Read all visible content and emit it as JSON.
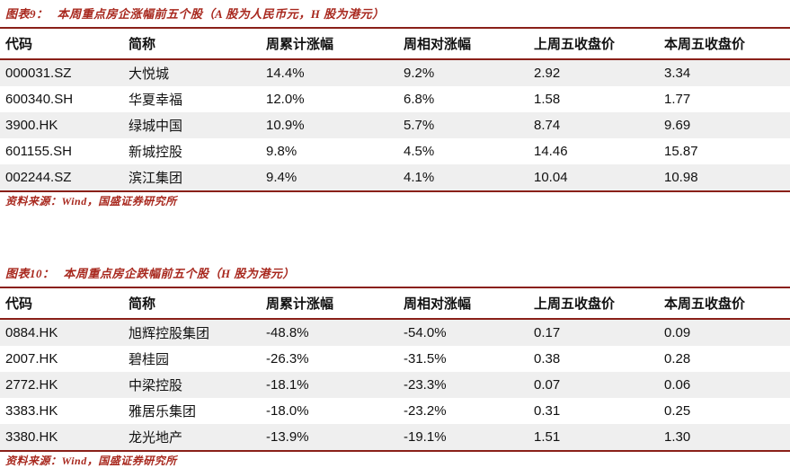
{
  "colors": {
    "maroon_border": "#8a2019",
    "title_red": "#a8281e",
    "zebra_gray": "#efefef",
    "text_black": "#111111"
  },
  "tables": [
    {
      "figure_label": "图表9：",
      "title": "本周重点房企涨幅前五个股（A 股为人民币元，H 股为港元）",
      "columns": [
        "代码",
        "简称",
        "周累计涨幅",
        "周相对涨幅",
        "上周五收盘价",
        "本周五收盘价"
      ],
      "rows": [
        [
          "000031.SZ",
          "大悦城",
          "14.4%",
          "9.2%",
          "2.92",
          "3.34"
        ],
        [
          "600340.SH",
          "华夏幸福",
          "12.0%",
          "6.8%",
          "1.58",
          "1.77"
        ],
        [
          "3900.HK",
          "绿城中国",
          "10.9%",
          "5.7%",
          "8.74",
          "9.69"
        ],
        [
          "601155.SH",
          "新城控股",
          "9.8%",
          "4.5%",
          "14.46",
          "15.87"
        ],
        [
          "002244.SZ",
          "滨江集团",
          "9.4%",
          "4.1%",
          "10.04",
          "10.98"
        ]
      ],
      "source": "资料来源：Wind，国盛证券研究所"
    },
    {
      "figure_label": "图表10：",
      "title": "本周重点房企跌幅前五个股（H 股为港元）",
      "columns": [
        "代码",
        "简称",
        "周累计涨幅",
        "周相对涨幅",
        "上周五收盘价",
        "本周五收盘价"
      ],
      "rows": [
        [
          "0884.HK",
          "旭辉控股集团",
          "-48.8%",
          "-54.0%",
          "0.17",
          "0.09"
        ],
        [
          "2007.HK",
          "碧桂园",
          "-26.3%",
          "-31.5%",
          "0.38",
          "0.28"
        ],
        [
          "2772.HK",
          "中梁控股",
          "-18.1%",
          "-23.3%",
          "0.07",
          "0.06"
        ],
        [
          "3383.HK",
          "雅居乐集团",
          "-18.0%",
          "-23.2%",
          "0.31",
          "0.25"
        ],
        [
          "3380.HK",
          "龙光地产",
          "-13.9%",
          "-19.1%",
          "1.51",
          "1.30"
        ]
      ],
      "source": "资料来源：Wind，国盛证券研究所"
    }
  ]
}
